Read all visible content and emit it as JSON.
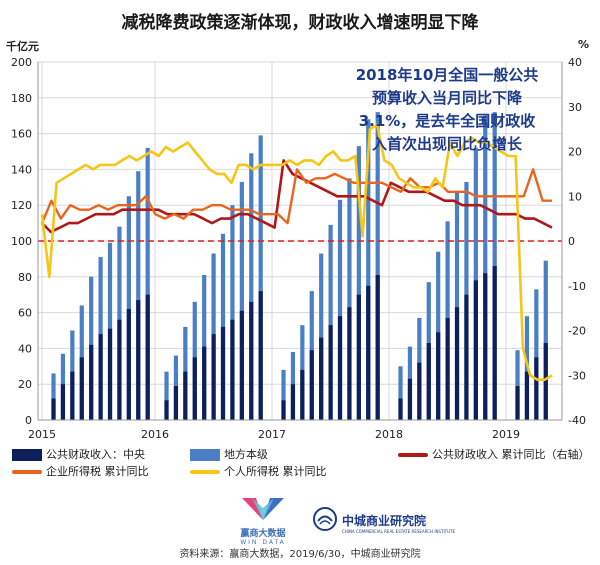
{
  "title": "减税降费政策逐渐体现，财政收入增速明显下降",
  "unit_left": "千亿元",
  "unit_right": "%",
  "annotation_lines": [
    "2018年10月全国一般公共",
    "预算收入当月同比下降",
    "3.1%，是去年全国财政收",
    "入首次出现同比负增长"
  ],
  "legend": {
    "central": "公共财政收入：中央",
    "local": "地方本级",
    "yoy": "公共财政收入 累计同比（右轴）",
    "corp_tax": "企业所得税 累计同比",
    "ind_tax": "个人所得税 累计同比"
  },
  "source": "资料来源：赢商大数据，2019/6/30，中城商业研究院",
  "logos": {
    "wind_cn": "赢商大数据",
    "wind_en": "WIN DATA",
    "zc_cn": "中城商业研究院",
    "zc_en": "CHINA COMMERCIAL REAL ESTATE RESEARCH INSTITUTE"
  },
  "colors": {
    "central": "#0e1f5c",
    "local": "#4a7fc6",
    "yoy": "#b01818",
    "corp_tax": "#e8651d",
    "ind_tax": "#f5c518",
    "zero_line": "#d42020",
    "annotation": "#1d3b8a"
  },
  "chart_data": {
    "type": "bar+line",
    "x_ticks": [
      "2015",
      "2016",
      "2017",
      "2018",
      "2019"
    ],
    "left_axis": {
      "min": 0,
      "max": 200,
      "step": 20,
      "ticks": [
        "0",
        "20",
        "40",
        "60",
        "80",
        "100",
        "120",
        "140",
        "160",
        "180",
        "200"
      ]
    },
    "right_axis": {
      "min": -40,
      "max": 40,
      "step": 10,
      "ticks": [
        "-40",
        "-30",
        "-20",
        "-10",
        "0",
        "10",
        "20",
        "30",
        "40"
      ]
    },
    "grid": true,
    "zero_line": true,
    "years": [
      {
        "year": 2015,
        "central": [
          12,
          20,
          27,
          35,
          42,
          48,
          51,
          56,
          62,
          67,
          70
        ],
        "local": [
          26,
          37,
          50,
          64,
          80,
          91,
          99,
          108,
          125,
          139,
          152
        ]
      },
      {
        "year": 2016,
        "central": [
          11,
          19,
          27,
          35,
          41,
          48,
          52,
          56,
          61,
          66,
          72
        ],
        "local": [
          27,
          36,
          52,
          66,
          81,
          93,
          104,
          120,
          133,
          149,
          159
        ]
      },
      {
        "year": 2017,
        "central": [
          11,
          20,
          28,
          39,
          46,
          53,
          58,
          63,
          70,
          75,
          81
        ],
        "local": [
          28,
          38,
          53,
          72,
          93,
          109,
          123,
          135,
          153,
          168,
          172
        ]
      },
      {
        "year": 2018,
        "central": [
          12,
          23,
          32,
          43,
          49,
          57,
          63,
          70,
          78,
          82,
          86
        ],
        "local": [
          30,
          41,
          57,
          77,
          94,
          111,
          128,
          133,
          152,
          170,
          172
        ]
      },
      {
        "year": 2019,
        "central": [
          19,
          27,
          35,
          43
        ],
        "local": [
          39,
          58,
          73,
          89
        ]
      }
    ],
    "series_lines": [
      {
        "key": "yoy",
        "values": [
          4,
          2,
          3,
          4,
          4,
          5,
          6,
          6,
          6,
          7,
          7,
          7,
          7,
          7,
          6,
          6,
          6,
          6,
          5,
          4,
          5,
          5,
          6,
          6,
          5,
          4,
          3,
          18,
          15,
          14,
          13,
          12,
          11,
          10,
          10,
          10,
          10,
          9,
          8,
          13,
          12,
          11,
          11,
          11,
          10,
          9,
          9,
          8,
          8,
          8,
          7,
          6,
          6,
          6,
          5,
          5,
          4,
          3
        ]
      },
      {
        "key": "corp_tax",
        "values": [
          4,
          9,
          5,
          8,
          7,
          7,
          8,
          7,
          8,
          8,
          8,
          10,
          6,
          5,
          6,
          5,
          7,
          7,
          8,
          8,
          7,
          7,
          7,
          6,
          6,
          6,
          4,
          16,
          13,
          14,
          14,
          15,
          14,
          13,
          13,
          13,
          13,
          12,
          11,
          14,
          12,
          12,
          13,
          11,
          11,
          11,
          10,
          10,
          10,
          10,
          10,
          10,
          16,
          9,
          9
        ]
      },
      {
        "key": "ind_tax",
        "values": [
          6,
          -8,
          13,
          14,
          15,
          16,
          17,
          16,
          17,
          17,
          17,
          18,
          19,
          18,
          19,
          20,
          19,
          21,
          20,
          21,
          22,
          20,
          18,
          16,
          15,
          15,
          13,
          17,
          17,
          16,
          17,
          17,
          17,
          17,
          18,
          17,
          18,
          18,
          17,
          19,
          20,
          18,
          18,
          19,
          1,
          25,
          26,
          18,
          17,
          14,
          13,
          12,
          12,
          11,
          14,
          12,
          22,
          19,
          22,
          23,
          22,
          22,
          21,
          20,
          19,
          19,
          -24,
          -30,
          -31,
          -31,
          -30
        ]
      }
    ]
  }
}
